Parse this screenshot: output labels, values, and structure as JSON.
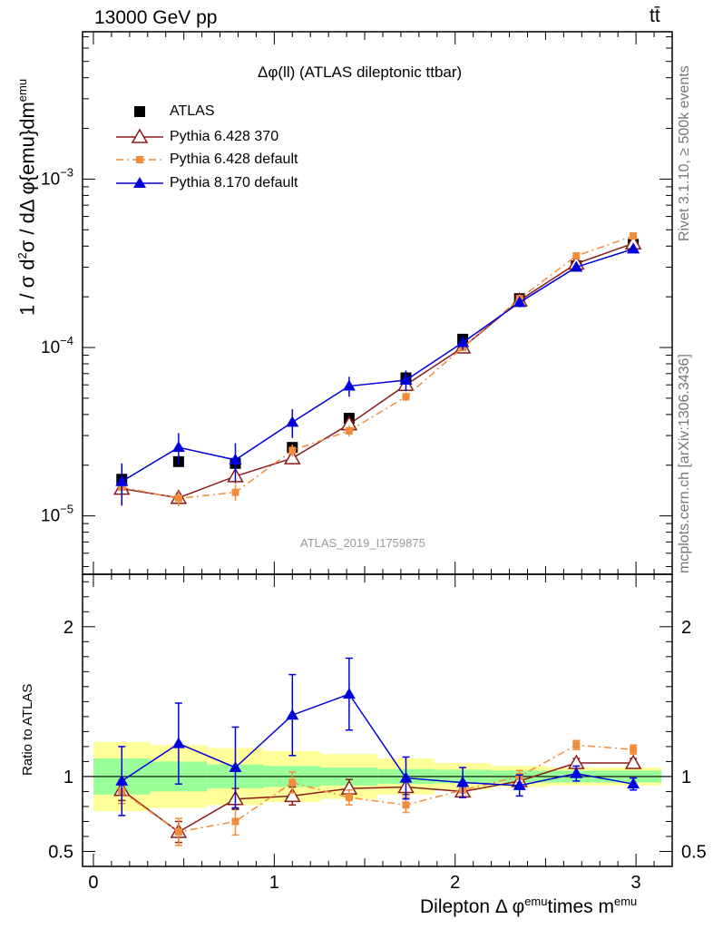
{
  "header": {
    "left": "13000 GeV pp",
    "right": "tt̄"
  },
  "side_labels": {
    "rivet": "Rivet 3.1.10, ≥ 500k events",
    "mcplots": "mcplots.cern.ch [arXiv:1306.3436]"
  },
  "colors": {
    "atlas": "#000000",
    "py6_370": "#8b1a1a",
    "py6_default": "#f28c3a",
    "py8": "#0000dd",
    "band_inner": "#99ff99",
    "band_outer": "#ffff99"
  },
  "chart_data": {
    "type": "line",
    "title": "Δφ(ll) (ATLAS dileptonic ttbar)",
    "watermark": "ATLAS_2019_I1759875",
    "ylabel": "1 / σ  d²σ / dΔ φ{emu}dm^emu",
    "ylabel_parts": {
      "a": "1 / σ  d",
      "sup1": "2",
      "b": "σ / dΔ φ{emu}dm",
      "sup2": "emu"
    },
    "ratio_ylabel": "Ratio to ATLAS",
    "xlabel": "Dilepton Δ φ^emu times m^emu",
    "xlabel_parts": {
      "a": "Dilepton Δ φ",
      "sup1": "emu",
      "b": "times m",
      "sup2": "emu"
    },
    "xlim": [
      -0.06,
      3.2
    ],
    "ylim": [
      4.5e-06,
      0.0075
    ],
    "ratio_ylim": [
      0.4,
      2.35
    ],
    "x_ticks": [
      "0",
      "1",
      "2",
      "3"
    ],
    "y_ticks": [
      "10^-5",
      "10^-4",
      "10^-3"
    ],
    "ratio_ticks": [
      "0.5",
      "1",
      "2"
    ],
    "bin_edges": [
      0,
      0.314,
      0.628,
      0.942,
      1.257,
      1.571,
      1.885,
      2.199,
      2.513,
      2.827,
      3.14
    ],
    "x": [
      0.157,
      0.471,
      0.785,
      1.1,
      1.414,
      1.728,
      2.042,
      2.356,
      2.67,
      2.985
    ],
    "series": [
      {
        "name": "ATLAS",
        "marker": "square",
        "values": [
          1.65e-05,
          2.1e-05,
          2.05e-05,
          2.55e-05,
          3.8e-05,
          6.6e-05,
          0.000112,
          0.000195,
          0.000305,
          0.00041
        ],
        "ratio": [
          1,
          1,
          1,
          1,
          1,
          1,
          1,
          1,
          1,
          1
        ],
        "band_inner": [
          0.12,
          0.1,
          0.08,
          0.07,
          0.06,
          0.05,
          0.045,
          0.04,
          0.04,
          0.04
        ],
        "band_outer": [
          0.23,
          0.21,
          0.19,
          0.17,
          0.15,
          0.12,
          0.09,
          0.07,
          0.06,
          0.06
        ]
      },
      {
        "name": "Pythia 6.428 370",
        "marker": "open-triangle",
        "values": [
          1.45e-05,
          1.28e-05,
          1.72e-05,
          2.2e-05,
          3.5e-05,
          6e-05,
          0.0001,
          0.00019,
          0.000315,
          0.000415
        ],
        "errors": [
          1.5e-06,
          1.2e-06,
          1.6e-06,
          1.8e-06,
          2.5e-06,
          3.5e-06,
          5e-06,
          8e-06,
          1e-05,
          1.2e-05
        ],
        "ratio": [
          0.91,
          0.63,
          0.85,
          0.87,
          0.92,
          0.93,
          0.9,
          0.97,
          1.09,
          1.09
        ],
        "ratio_err": [
          0.07,
          0.07,
          0.07,
          0.06,
          0.06,
          0.05,
          0.04,
          0.04,
          0.03,
          0.03
        ]
      },
      {
        "name": "Pythia 6.428 default",
        "marker": "small-square-dashdot",
        "values": [
          1.48e-05,
          1.27e-05,
          1.38e-05,
          2.45e-05,
          3.2e-05,
          5.1e-05,
          0.0001,
          0.000195,
          0.00035,
          0.00046
        ],
        "errors": [
          1.5e-06,
          1.3e-06,
          1.5e-06,
          2e-06,
          2.4e-06,
          3e-06,
          5e-06,
          8e-06,
          1.1e-05,
          1.3e-05
        ],
        "ratio": [
          0.9,
          0.63,
          0.7,
          0.96,
          0.86,
          0.81,
          0.91,
          1.0,
          1.21,
          1.18
        ],
        "ratio_err": [
          0.08,
          0.09,
          0.09,
          0.07,
          0.05,
          0.05,
          0.04,
          0.04,
          0.03,
          0.03
        ]
      },
      {
        "name": "Pythia 8.170 default",
        "marker": "triangle",
        "values": [
          1.6e-05,
          2.55e-05,
          2.15e-05,
          3.6e-05,
          5.9e-05,
          6.4e-05,
          0.000107,
          0.000185,
          0.0003,
          0.000385
        ],
        "errors": [
          4.5e-06,
          5.5e-06,
          5.5e-06,
          7e-06,
          8e-06,
          9e-06,
          1e-05,
          1.2e-05,
          1.5e-05,
          1.8e-05
        ],
        "ratio": [
          0.97,
          1.22,
          1.06,
          1.41,
          1.55,
          0.99,
          0.96,
          0.94,
          1.02,
          0.95
        ],
        "ratio_err": [
          0.23,
          0.27,
          0.27,
          0.27,
          0.24,
          0.14,
          0.1,
          0.07,
          0.05,
          0.04
        ]
      }
    ]
  }
}
